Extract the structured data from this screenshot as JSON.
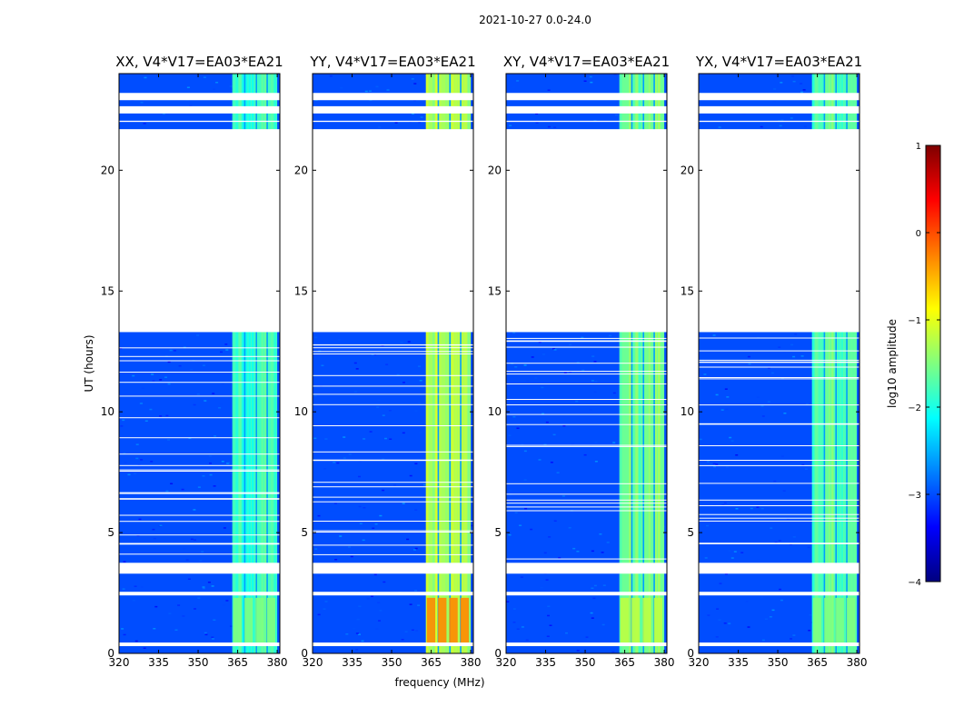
{
  "suptitle": "2021-10-27 0.0-24.0",
  "chart_data": {
    "type": "heatmap",
    "suptitle": "2021-10-27 0.0-24.0",
    "xlabel": "frequency (MHz)",
    "ylabel": "UT (hours)",
    "xlim": [
      320,
      381
    ],
    "ylim": [
      0,
      24
    ],
    "xticks": [
      320,
      335,
      350,
      365,
      380
    ],
    "xtick_labels": [
      "320",
      "335",
      "350",
      "365",
      "380"
    ],
    "yticks": [
      0,
      5,
      10,
      15,
      20
    ],
    "ytick_labels": [
      "0",
      "5",
      "10",
      "15",
      "20"
    ],
    "colorbar": {
      "label": "log10 amplitude",
      "range": [
        -4,
        1
      ],
      "ticks": [
        1,
        0,
        -1,
        -2,
        -3,
        -4
      ],
      "tick_labels": [
        "1",
        "0",
        "−1",
        "−2",
        "−3",
        "−4"
      ],
      "colormap": "jet"
    },
    "data_gaps_ut": [
      [
        0.3,
        0.45
      ],
      [
        2.4,
        2.55
      ],
      [
        3.3,
        3.75
      ],
      [
        13.3,
        21.7
      ],
      [
        22.0,
        22.05
      ],
      [
        22.35,
        22.65
      ],
      [
        22.9,
        23.2
      ]
    ],
    "signal_band_mhz": [
      363,
      380
    ],
    "background_log_amplitude": -3,
    "panels": [
      {
        "title": "XX, V4*V17=EA03*EA21",
        "signal_log_amplitude": -1.8,
        "peak_log_amplitude": -1.5
      },
      {
        "title": "YY, V4*V17=EA03*EA21",
        "signal_log_amplitude": -1.3,
        "peak_log_amplitude": -0.3
      },
      {
        "title": "XY, V4*V17=EA03*EA21",
        "signal_log_amplitude": -1.6,
        "peak_log_amplitude": -1.2
      },
      {
        "title": "YX, V4*V17=EA03*EA21",
        "signal_log_amplitude": -1.7,
        "peak_log_amplitude": -1.5
      }
    ]
  }
}
